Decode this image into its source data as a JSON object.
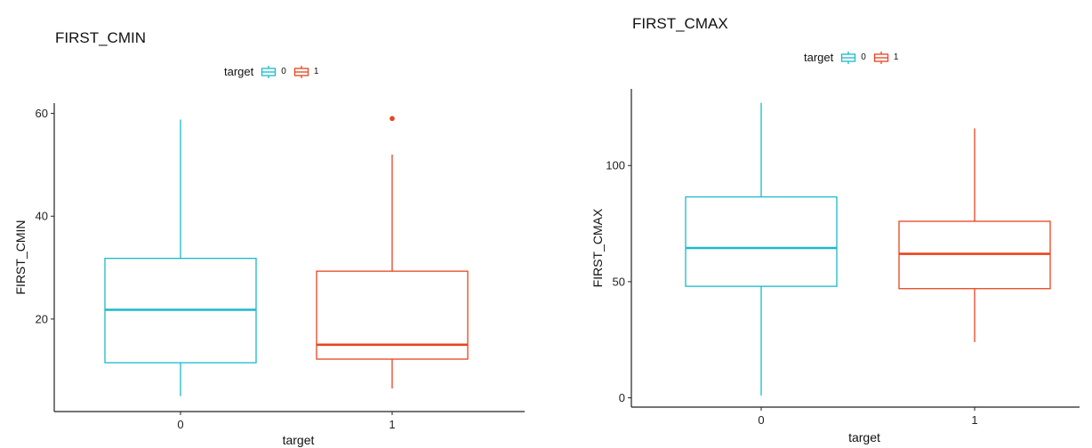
{
  "colors": {
    "group_0": "#1ABAC8",
    "group_1": "#E8431E",
    "axis": "#222222"
  },
  "chart_data": [
    {
      "type": "box",
      "title": "FIRST_CMIN",
      "xlabel": "target",
      "ylabel": "FIRST_CMIN",
      "legend": {
        "title": "target",
        "placement": "top",
        "entries": [
          "0",
          "1"
        ]
      },
      "categories": [
        "0",
        "1"
      ],
      "ylim": [
        2,
        62
      ],
      "yticks": [
        20,
        40,
        60
      ],
      "grid": false,
      "boxes": [
        {
          "category": "0",
          "min": 5,
          "q1": 11.5,
          "median": 21.8,
          "q3": 31.8,
          "max": 58.8,
          "outliers": []
        },
        {
          "category": "1",
          "min": 6.5,
          "q1": 12.2,
          "median": 15,
          "q3": 29.3,
          "max": 52,
          "outliers": [
            59
          ]
        }
      ]
    },
    {
      "type": "box",
      "title": "FIRST_CMAX",
      "xlabel": "target",
      "ylabel": "FIRST_CMAX",
      "legend": {
        "title": "target",
        "placement": "top",
        "entries": [
          "0",
          "1"
        ]
      },
      "categories": [
        "0",
        "1"
      ],
      "ylim": [
        -4,
        133
      ],
      "yticks": [
        0,
        50,
        100
      ],
      "grid": false,
      "boxes": [
        {
          "category": "0",
          "min": 1,
          "q1": 48,
          "median": 64.5,
          "q3": 86.5,
          "max": 127,
          "outliers": []
        },
        {
          "category": "1",
          "min": 24,
          "q1": 47,
          "median": 62,
          "q3": 76,
          "max": 116,
          "outliers": []
        }
      ]
    }
  ]
}
